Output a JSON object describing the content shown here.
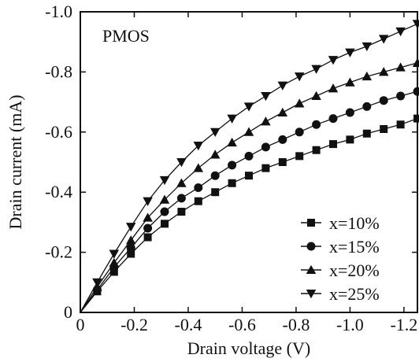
{
  "chart_data": {
    "type": "line",
    "title": "",
    "annotation": "PMOS",
    "xlabel": "Drain voltage (V)",
    "ylabel": "Drain current (mA)",
    "xlim": [
      0,
      -1.25
    ],
    "ylim": [
      0,
      -1.0
    ],
    "x_ticks": [
      0,
      -0.2,
      -0.4,
      -0.6,
      -0.8,
      -1.0,
      -1.2
    ],
    "x_tick_labels": [
      "0",
      "-0.2",
      "-0.4",
      "-0.6",
      "-0.8",
      "-1.0",
      "-1.2"
    ],
    "y_ticks": [
      0,
      -0.2,
      -0.4,
      -0.6,
      -0.8,
      -1.0
    ],
    "y_tick_labels": [
      "0",
      "-0.2",
      "-0.4",
      "-0.6",
      "-0.8",
      "-1.0"
    ],
    "grid": false,
    "legend_position": "bottom-right",
    "x": [
      0,
      -0.0625,
      -0.125,
      -0.1875,
      -0.25,
      -0.3125,
      -0.375,
      -0.4375,
      -0.5,
      -0.5625,
      -0.625,
      -0.6875,
      -0.75,
      -0.8125,
      -0.875,
      -0.9375,
      -1.0,
      -1.0625,
      -1.125,
      -1.1875,
      -1.25
    ],
    "series": [
      {
        "name": "x=10%",
        "marker": "square",
        "values": [
          0,
          -0.07,
          -0.135,
          -0.195,
          -0.25,
          -0.295,
          -0.335,
          -0.37,
          -0.4,
          -0.43,
          -0.455,
          -0.48,
          -0.5,
          -0.52,
          -0.54,
          -0.56,
          -0.575,
          -0.595,
          -0.61,
          -0.625,
          -0.645
        ]
      },
      {
        "name": "x=15%",
        "marker": "circle",
        "values": [
          0,
          -0.075,
          -0.15,
          -0.215,
          -0.28,
          -0.335,
          -0.38,
          -0.415,
          -0.455,
          -0.49,
          -0.52,
          -0.55,
          -0.575,
          -0.6,
          -0.625,
          -0.645,
          -0.665,
          -0.685,
          -0.705,
          -0.72,
          -0.735
        ]
      },
      {
        "name": "x=20%",
        "marker": "triangle-up",
        "values": [
          0,
          -0.085,
          -0.165,
          -0.24,
          -0.315,
          -0.375,
          -0.43,
          -0.48,
          -0.525,
          -0.565,
          -0.6,
          -0.635,
          -0.665,
          -0.695,
          -0.72,
          -0.745,
          -0.765,
          -0.785,
          -0.8,
          -0.815,
          -0.83
        ]
      },
      {
        "name": "x=25%",
        "marker": "triangle-down",
        "values": [
          0,
          -0.1,
          -0.195,
          -0.285,
          -0.37,
          -0.44,
          -0.5,
          -0.555,
          -0.6,
          -0.645,
          -0.685,
          -0.72,
          -0.755,
          -0.785,
          -0.81,
          -0.84,
          -0.865,
          -0.885,
          -0.91,
          -0.935,
          -0.96
        ]
      }
    ]
  }
}
